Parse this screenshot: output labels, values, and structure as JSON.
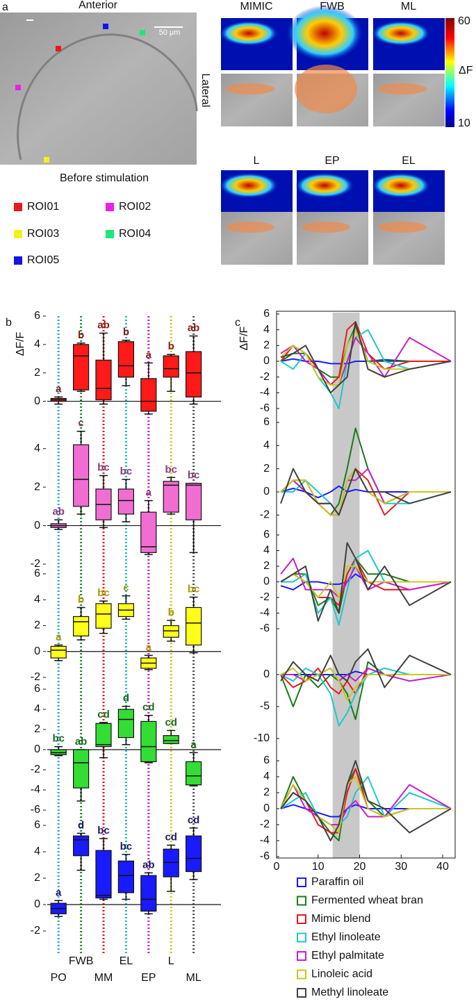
{
  "panel_labels": [
    "a",
    "b",
    "c"
  ],
  "panel_a": {
    "title": "Anterior",
    "scale_bar": "50 µm",
    "caption": "Before stimulation",
    "side_label": "Lateral",
    "heatmap_labels": [
      "MIMIC",
      "FWB",
      "ML",
      "L",
      "EP",
      "EL"
    ],
    "colorbar": {
      "label": "ΔF",
      "lim": [
        10,
        60
      ],
      "ticks": [
        10,
        60
      ]
    },
    "rois": [
      {
        "name": "ROI01",
        "color": "#e8191e"
      },
      {
        "name": "ROI02",
        "color": "#f01ee6"
      },
      {
        "name": "ROI03",
        "color": "#f5f01e"
      },
      {
        "name": "ROI04",
        "color": "#1ee678"
      },
      {
        "name": "ROI05",
        "color": "#1414e6"
      }
    ]
  },
  "category_colors": [
    "#25a5d8",
    "#1a8a2a",
    "#e01a1a",
    "#20b8b0",
    "#c81ec8",
    "#c8c81e",
    "#505050"
  ],
  "stimulus_window": [
    13.5,
    20
  ],
  "chart_data": [
    {
      "type": "box",
      "ylabel": "ΔF/F",
      "ylim": [
        -1,
        6
      ],
      "yticks": [
        0,
        2,
        4,
        6
      ],
      "color": "#ff1a1a",
      "letter_color": "#8b1a1a",
      "letters": [
        "a",
        "b",
        "ab",
        "b",
        "a",
        "b",
        "ab"
      ],
      "boxes": [
        {
          "min": -0.2,
          "q1": 0,
          "median": 0.1,
          "q3": 0.2,
          "max": 0.3
        },
        {
          "min": 0.7,
          "q1": 0.8,
          "median": 3.2,
          "q3": 4,
          "max": 4.1
        },
        {
          "min": -0.2,
          "q1": 0.1,
          "median": 0.9,
          "q3": 2.9,
          "max": 4.8
        },
        {
          "min": 1.1,
          "q1": 1.7,
          "median": 2.5,
          "q3": 4.2,
          "max": 4.3
        },
        {
          "min": -0.9,
          "q1": -0.7,
          "median": 0,
          "q3": 1.6,
          "max": 2.7
        },
        {
          "min": 0.7,
          "q1": 1.7,
          "median": 2.3,
          "q3": 3.2,
          "max": 3.3
        },
        {
          "min": -0.2,
          "q1": 0.3,
          "median": 2,
          "q3": 3.5,
          "max": 4.6
        }
      ]
    },
    {
      "type": "box",
      "ylim": [
        -2,
        5
      ],
      "yticks": [
        -2,
        0,
        2,
        4
      ],
      "color": "#f06ed2",
      "letter_color": "#8b3a7a",
      "letters": [
        "ab",
        "c",
        "bc",
        "bc",
        "a",
        "bc",
        "bc"
      ],
      "boxes": [
        {
          "min": -0.2,
          "q1": -0.1,
          "median": 0,
          "q3": 0.1,
          "max": 0.3
        },
        {
          "min": 0.6,
          "q1": 1,
          "median": 2.4,
          "q3": 4.2,
          "max": 4.9
        },
        {
          "min": -0.1,
          "q1": 0.3,
          "median": 1.1,
          "q3": 1.9,
          "max": 2.6
        },
        {
          "min": 0.2,
          "q1": 0.6,
          "median": 1.3,
          "q3": 1.9,
          "max": 2.4
        },
        {
          "min": -1.5,
          "q1": -1.4,
          "median": -1.1,
          "q3": 0.7,
          "max": 1.3
        },
        {
          "min": 0.6,
          "q1": 0.7,
          "median": 2.1,
          "q3": 2.3,
          "max": 2.5
        },
        {
          "min": -1.4,
          "q1": 0.3,
          "median": 2.1,
          "q3": 2.2,
          "max": 2.2
        }
      ]
    },
    {
      "type": "box",
      "ylim": [
        -2,
        6
      ],
      "yticks": [
        -2,
        0,
        2,
        4,
        6
      ],
      "color": "#ffff1a",
      "letter_color": "#a89a00",
      "letters": [
        "a",
        "b",
        "bc",
        "c",
        "a",
        "b",
        "bc"
      ],
      "boxes": [
        {
          "min": -0.7,
          "q1": -0.5,
          "median": 0.1,
          "q3": 0.4,
          "max": 0.5
        },
        {
          "min": 0.9,
          "q1": 1.2,
          "median": 2.3,
          "q3": 2.7,
          "max": 3.4
        },
        {
          "min": 1.4,
          "q1": 1.8,
          "median": 2.9,
          "q3": 3.7,
          "max": 3.9
        },
        {
          "min": 2.5,
          "q1": 2.7,
          "median": 3.2,
          "q3": 3.7,
          "max": 4.3
        },
        {
          "min": -1.4,
          "q1": -1.3,
          "median": -0.9,
          "q3": -0.5,
          "max": -0.3
        },
        {
          "min": 0.8,
          "q1": 1.1,
          "median": 1.6,
          "q3": 2,
          "max": 2.4
        },
        {
          "min": -0.1,
          "q1": 0.5,
          "median": 2.2,
          "q3": 3.4,
          "max": 4.2
        }
      ]
    },
    {
      "type": "box",
      "ylim": [
        -6,
        6
      ],
      "yticks": [
        -6,
        -4,
        -2,
        0,
        2,
        4,
        6
      ],
      "color": "#33dd33",
      "letter_color": "#1a6b1a",
      "letters": [
        "bc",
        "ab",
        "cd",
        "d",
        "cd",
        "cd",
        "a"
      ],
      "boxes": [
        {
          "min": -0.6,
          "q1": -0.5,
          "median": -0.3,
          "q3": 0,
          "max": 0.3
        },
        {
          "min": -5.1,
          "q1": -3.8,
          "median": -1.3,
          "q3": 0,
          "max": 0
        },
        {
          "min": -0.8,
          "q1": 0.3,
          "median": 0.5,
          "q3": 2.6,
          "max": 2.7
        },
        {
          "min": 0.5,
          "q1": 1.2,
          "median": 3,
          "q3": 4,
          "max": 4.3
        },
        {
          "min": -1.3,
          "q1": -1.2,
          "median": 0.3,
          "q3": 2.8,
          "max": 3.4
        },
        {
          "min": 0.6,
          "q1": 0.6,
          "median": 0.9,
          "q3": 1.4,
          "max": 1.9
        },
        {
          "min": -3.6,
          "q1": -3.5,
          "median": -2.6,
          "q3": -1.2,
          "max": -0.3
        }
      ]
    },
    {
      "type": "box",
      "ylim": [
        -2,
        6
      ],
      "yticks": [
        -2,
        0,
        2,
        4,
        6
      ],
      "color": "#1a1aff",
      "letter_color": "#1a1a6b",
      "categories": [
        "PO",
        "FWB",
        "MM",
        "EL",
        "EP",
        "L",
        "ML"
      ],
      "letters": [
        "a",
        "d",
        "bc",
        "bc",
        "ab",
        "cd",
        "cd"
      ],
      "boxes": [
        {
          "min": -0.9,
          "q1": -0.7,
          "median": -0.3,
          "q3": 0.1,
          "max": 0.3
        },
        {
          "min": 2.6,
          "q1": 3.7,
          "median": 4.9,
          "q3": 5.2,
          "max": 5.4
        },
        {
          "min": 0.4,
          "q1": 0.5,
          "median": 0.7,
          "q3": 4.1,
          "max": 5
        },
        {
          "min": 0.4,
          "q1": 0.9,
          "median": 2.2,
          "q3": 3.3,
          "max": 3.8
        },
        {
          "min": -0.7,
          "q1": -0.5,
          "median": 0.4,
          "q3": 2.2,
          "max": 2.4
        },
        {
          "min": 1,
          "q1": 2.1,
          "median": 3.2,
          "q3": 4.2,
          "max": 4.5
        },
        {
          "min": 1.9,
          "q1": 2.5,
          "median": 3.5,
          "q3": 5.2,
          "max": 5.8
        }
      ]
    },
    {
      "type": "line",
      "ylabel": "ΔF/F",
      "xlim": [
        0,
        43
      ],
      "ylim": [
        -6,
        6
      ],
      "yticks": [
        -6,
        -4,
        -2,
        0,
        2,
        4,
        6
      ],
      "x": [
        1,
        4,
        7,
        10,
        13,
        15,
        17,
        19,
        22,
        26,
        32,
        42
      ],
      "series": [
        {
          "color": "#1a1aff",
          "values": [
            0,
            0.3,
            0,
            0,
            -0.3,
            -0.3,
            -0.3,
            0,
            0,
            0.2,
            0,
            0
          ]
        },
        {
          "color": "#1a7a1a",
          "values": [
            0,
            1,
            1,
            -1,
            -2,
            -2,
            2,
            4.5,
            0,
            0,
            0,
            0
          ]
        },
        {
          "color": "#e8191e",
          "values": [
            0,
            2,
            1,
            -1,
            -3,
            -2,
            4,
            5,
            1,
            -1,
            0,
            0
          ]
        },
        {
          "color": "#1ec8c8",
          "values": [
            0,
            -1,
            1,
            -2,
            -4,
            -6,
            0,
            3,
            4,
            0,
            -1,
            0
          ]
        },
        {
          "color": "#c81ec8",
          "values": [
            1,
            2,
            0,
            -1,
            -3,
            -3,
            0,
            3,
            1,
            -2,
            3,
            0
          ]
        },
        {
          "color": "#c8c81e",
          "values": [
            0.5,
            2,
            1,
            -2,
            -3,
            -3,
            2,
            4,
            0,
            -1,
            -1,
            0
          ]
        },
        {
          "color": "#404040",
          "values": [
            0.5,
            1,
            2,
            -1,
            -4,
            -3,
            -2,
            5,
            -1,
            -2,
            -1,
            0
          ]
        }
      ]
    },
    {
      "type": "line",
      "xlim": [
        0,
        43
      ],
      "ylim": [
        -3,
        6
      ],
      "yticks": [
        -2,
        0,
        2,
        4,
        6
      ],
      "x": [
        1,
        4,
        7,
        10,
        13,
        15,
        17,
        19,
        22,
        26,
        32,
        42
      ],
      "series": [
        {
          "color": "#1a1aff",
          "values": [
            0,
            0.3,
            0,
            -0.5,
            0,
            0.5,
            0,
            0.2,
            0,
            0,
            0,
            0
          ]
        },
        {
          "color": "#1a7a1a",
          "values": [
            0,
            1,
            0,
            -1,
            -2,
            -1,
            2,
            5.5,
            2,
            -1,
            0,
            0
          ]
        },
        {
          "color": "#e8191e",
          "values": [
            0,
            1,
            1,
            -1,
            -2,
            -2,
            1,
            2,
            1,
            -2,
            0,
            0
          ]
        },
        {
          "color": "#1ec8c8",
          "values": [
            0,
            0,
            1,
            0,
            -1,
            -2,
            0,
            2,
            0,
            -1,
            -1,
            0
          ]
        },
        {
          "color": "#c81ec8",
          "values": [
            0,
            1,
            0,
            -1,
            -1,
            -2,
            1,
            1,
            2,
            -1,
            0,
            0
          ]
        },
        {
          "color": "#c8c81e",
          "values": [
            0,
            1,
            1,
            -1,
            -2,
            -2,
            1,
            2,
            0,
            -1,
            0,
            0
          ]
        },
        {
          "color": "#404040",
          "values": [
            -1,
            2,
            0,
            -1,
            -1,
            -2,
            0,
            2,
            0,
            0,
            -1,
            0
          ]
        }
      ]
    },
    {
      "type": "line",
      "xlim": [
        0,
        43
      ],
      "ylim": [
        -6,
        6
      ],
      "yticks": [
        -6,
        -4,
        -2,
        0,
        2,
        4,
        6
      ],
      "x": [
        1,
        4,
        7,
        10,
        13,
        15,
        17,
        19,
        22,
        26,
        32,
        42
      ],
      "series": [
        {
          "color": "#1a1aff",
          "values": [
            -0.5,
            -1,
            0,
            0,
            -0.3,
            -0.3,
            0,
            1,
            0,
            0,
            0,
            0
          ]
        },
        {
          "color": "#1a7a1a",
          "values": [
            0,
            1,
            1,
            -3,
            -2,
            -4,
            1,
            3,
            1,
            1,
            0,
            0
          ]
        },
        {
          "color": "#e8191e",
          "values": [
            0,
            1,
            0,
            -2,
            -2,
            -3,
            1,
            3,
            0,
            -1,
            -1,
            0
          ]
        },
        {
          "color": "#1ec8c8",
          "values": [
            0,
            0,
            1,
            -4,
            -2,
            -5.5,
            -1,
            3,
            4,
            0,
            0,
            0
          ]
        },
        {
          "color": "#c81ec8",
          "values": [
            1,
            3,
            -1,
            -1,
            -1,
            -2,
            0,
            2,
            -1,
            0,
            -1,
            0
          ]
        },
        {
          "color": "#c8c81e",
          "values": [
            0,
            1,
            0,
            -2,
            0,
            -2,
            2,
            2,
            0,
            0,
            0,
            0
          ]
        },
        {
          "color": "#404040",
          "values": [
            0,
            1,
            2,
            -5,
            -1,
            -4,
            5,
            3,
            -1,
            2,
            -3,
            0
          ]
        }
      ]
    },
    {
      "type": "line",
      "xlim": [
        0,
        43
      ],
      "ylim": [
        -10,
        5
      ],
      "yticks": [
        -10,
        -5,
        0
      ],
      "x": [
        1,
        4,
        7,
        10,
        13,
        15,
        17,
        19,
        22,
        26,
        32,
        42
      ],
      "series": [
        {
          "color": "#1a1aff",
          "values": [
            0,
            0,
            0,
            0,
            0,
            0,
            0,
            0.5,
            0,
            0,
            0,
            0
          ]
        },
        {
          "color": "#1a7a1a",
          "values": [
            0,
            -5,
            0,
            -2,
            0,
            -1,
            -3,
            -7,
            2,
            0,
            0,
            0
          ]
        },
        {
          "color": "#e8191e",
          "values": [
            0,
            -2,
            -1,
            1,
            -2,
            -3,
            -1,
            -3,
            1,
            0,
            0,
            0
          ]
        },
        {
          "color": "#1ec8c8",
          "values": [
            0,
            -1,
            1,
            0,
            -3,
            -8,
            -6,
            -3,
            0,
            1,
            0,
            0
          ]
        },
        {
          "color": "#c81ec8",
          "values": [
            0,
            0,
            -1,
            0,
            1,
            -1,
            0,
            -1,
            1,
            0,
            -1,
            0
          ]
        },
        {
          "color": "#c8c81e",
          "values": [
            0,
            1,
            -1,
            0,
            1,
            -1,
            -4,
            -2,
            0,
            0,
            0,
            0
          ]
        },
        {
          "color": "#404040",
          "values": [
            -1,
            2,
            0,
            -1,
            3,
            0,
            -1,
            2,
            4,
            -2,
            3,
            0
          ]
        }
      ]
    },
    {
      "type": "line",
      "xlim": [
        0,
        43
      ],
      "ylim": [
        -6,
        6
      ],
      "yticks": [
        -6,
        -4,
        -2,
        0,
        2,
        4,
        6
      ],
      "xticks": [
        0,
        10,
        20,
        30,
        40
      ],
      "x": [
        1,
        4,
        7,
        10,
        13,
        15,
        17,
        19,
        22,
        26,
        32,
        42
      ],
      "series": [
        {
          "name": "Paraffin oil",
          "color": "#1a1aff",
          "values": [
            0,
            0.5,
            0,
            -0.5,
            -1,
            -1,
            0,
            0.5,
            0,
            0,
            0,
            0
          ]
        },
        {
          "name": "Fermented wheat bran",
          "color": "#1a7a1a",
          "values": [
            0,
            4,
            1,
            -1,
            -3,
            -4,
            3,
            5,
            1,
            -1,
            0,
            0
          ]
        },
        {
          "name": "Mimic blend",
          "color": "#e8191e",
          "values": [
            0,
            2,
            1,
            -2,
            -3,
            -3,
            2,
            5,
            0,
            -1,
            0,
            0
          ]
        },
        {
          "name": "Ethyl linoleate",
          "color": "#1ec8c8",
          "values": [
            0,
            1,
            2,
            -1,
            -2,
            -2,
            -1,
            2,
            4,
            -1,
            2,
            0
          ]
        },
        {
          "name": "Ethyl palmitate",
          "color": "#c81ec8",
          "values": [
            0,
            3,
            0,
            -1,
            -2,
            -2,
            0,
            1,
            -1,
            -1,
            3,
            0
          ]
        },
        {
          "name": "Linoleic acid",
          "color": "#c8c81e",
          "values": [
            0,
            3,
            1,
            -1,
            -2,
            -3,
            3,
            4,
            0,
            -1,
            0,
            0
          ]
        },
        {
          "name": "Methyl linoleate",
          "color": "#404040",
          "values": [
            0,
            2,
            1,
            -1,
            -4,
            -2,
            3,
            6,
            1,
            0,
            -3,
            0
          ]
        }
      ]
    }
  ]
}
